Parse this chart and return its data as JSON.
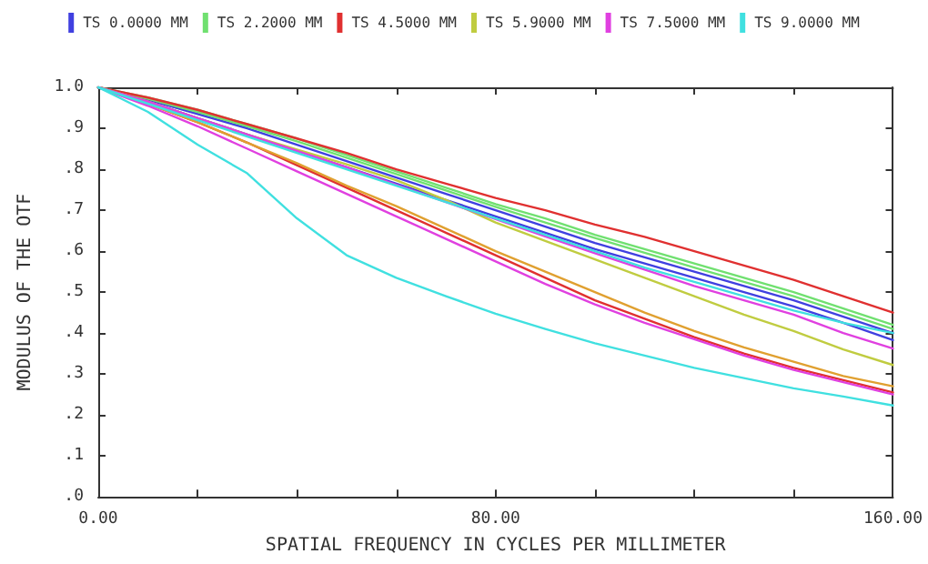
{
  "chart_data": {
    "type": "line",
    "xlabel": "SPATIAL FREQUENCY IN CYCLES PER MILLIMETER",
    "ylabel": "MODULUS OF THE OTF",
    "x": [
      0,
      10,
      20,
      30,
      40,
      50,
      60,
      70,
      80,
      90,
      100,
      110,
      120,
      130,
      140,
      150,
      160
    ],
    "xlim": [
      0,
      160
    ],
    "xticks": [
      {
        "value": 0,
        "label": "0.00"
      },
      {
        "value": 20,
        "label": null
      },
      {
        "value": 40,
        "label": null
      },
      {
        "value": 60,
        "label": null
      },
      {
        "value": 80,
        "label": "80.00"
      },
      {
        "value": 100,
        "label": null
      },
      {
        "value": 120,
        "label": null
      },
      {
        "value": 140,
        "label": null
      },
      {
        "value": 160,
        "label": "160.00"
      }
    ],
    "ylim": [
      0,
      1
    ],
    "yticks": [
      {
        "value": 0,
        "label": ".0"
      },
      {
        "value": 0.1,
        "label": ".1"
      },
      {
        "value": 0.2,
        "label": ".2"
      },
      {
        "value": 0.3,
        "label": ".3"
      },
      {
        "value": 0.4,
        "label": ".4"
      },
      {
        "value": 0.5,
        "label": ".5"
      },
      {
        "value": 0.6,
        "label": ".6"
      },
      {
        "value": 0.7,
        "label": ".7"
      },
      {
        "value": 0.8,
        "label": ".8"
      },
      {
        "value": 0.9,
        "label": ".9"
      },
      {
        "value": 1,
        "label": "1.0"
      }
    ],
    "grid": false,
    "legend": "top",
    "marker": "none",
    "line_style": "solid",
    "series": [
      {
        "name": "TS 0.0000 MM",
        "color": "#4040e0",
        "values": [
          1,
          0.965,
          0.925,
          0.885,
          0.845,
          0.805,
          0.765,
          0.725,
          0.685,
          0.645,
          0.605,
          0.57,
          0.535,
          0.5,
          0.465,
          0.425,
          0.383
        ]
      },
      {
        "color": "#4040e0",
        "values": [
          1,
          0.97,
          0.935,
          0.9,
          0.86,
          0.82,
          0.78,
          0.74,
          0.7,
          0.66,
          0.62,
          0.585,
          0.55,
          0.515,
          0.48,
          0.44,
          0.4
        ]
      },
      {
        "name": "TS 2.2000 MM",
        "color": "#70e070",
        "values": [
          1,
          0.975,
          0.945,
          0.91,
          0.875,
          0.835,
          0.795,
          0.755,
          0.715,
          0.68,
          0.64,
          0.605,
          0.57,
          0.535,
          0.5,
          0.46,
          0.42
        ]
      },
      {
        "color": "#70e070",
        "values": [
          1,
          0.972,
          0.94,
          0.905,
          0.868,
          0.828,
          0.788,
          0.748,
          0.708,
          0.67,
          0.632,
          0.596,
          0.56,
          0.525,
          0.49,
          0.45,
          0.41
        ]
      },
      {
        "name": "TS 4.5000 MM",
        "color": "#e03030",
        "values": [
          1,
          0.975,
          0.945,
          0.91,
          0.875,
          0.84,
          0.8,
          0.765,
          0.73,
          0.7,
          0.665,
          0.635,
          0.6,
          0.565,
          0.53,
          0.49,
          0.45
        ]
      },
      {
        "color": "#e03030",
        "values": [
          1,
          0.96,
          0.915,
          0.865,
          0.81,
          0.755,
          0.7,
          0.645,
          0.59,
          0.535,
          0.48,
          0.435,
          0.39,
          0.35,
          0.315,
          0.285,
          0.255
        ]
      },
      {
        "name": "TS 5.9000 MM",
        "color": "#c0cc40",
        "values": [
          1,
          0.965,
          0.925,
          0.885,
          0.848,
          0.812,
          0.773,
          0.725,
          0.67,
          0.625,
          0.58,
          0.535,
          0.49,
          0.445,
          0.405,
          0.36,
          0.322
        ]
      },
      {
        "color": "#e0a030",
        "values": [
          1,
          0.96,
          0.915,
          0.865,
          0.815,
          0.76,
          0.71,
          0.655,
          0.6,
          0.55,
          0.5,
          0.45,
          0.405,
          0.365,
          0.33,
          0.295,
          0.27
        ]
      },
      {
        "name": "TS 7.5000 MM",
        "color": "#e040e0",
        "values": [
          1,
          0.965,
          0.925,
          0.885,
          0.845,
          0.805,
          0.762,
          0.72,
          0.678,
          0.636,
          0.595,
          0.555,
          0.515,
          0.48,
          0.445,
          0.4,
          0.362
        ]
      },
      {
        "color": "#e040e0",
        "values": [
          1,
          0.955,
          0.905,
          0.85,
          0.795,
          0.74,
          0.685,
          0.63,
          0.575,
          0.52,
          0.47,
          0.425,
          0.385,
          0.345,
          0.31,
          0.28,
          0.25
        ]
      },
      {
        "name": "TS 9.0000 MM",
        "color": "#40e0e0",
        "values": [
          1,
          0.96,
          0.92,
          0.88,
          0.84,
          0.8,
          0.76,
          0.72,
          0.68,
          0.64,
          0.6,
          0.56,
          0.525,
          0.49,
          0.455,
          0.425,
          0.4
        ]
      },
      {
        "color": "#40e0e0",
        "values": [
          1,
          0.94,
          0.86,
          0.79,
          0.68,
          0.59,
          0.535,
          0.49,
          0.447,
          0.41,
          0.375,
          0.345,
          0.315,
          0.29,
          0.265,
          0.245,
          0.223
        ]
      }
    ]
  }
}
